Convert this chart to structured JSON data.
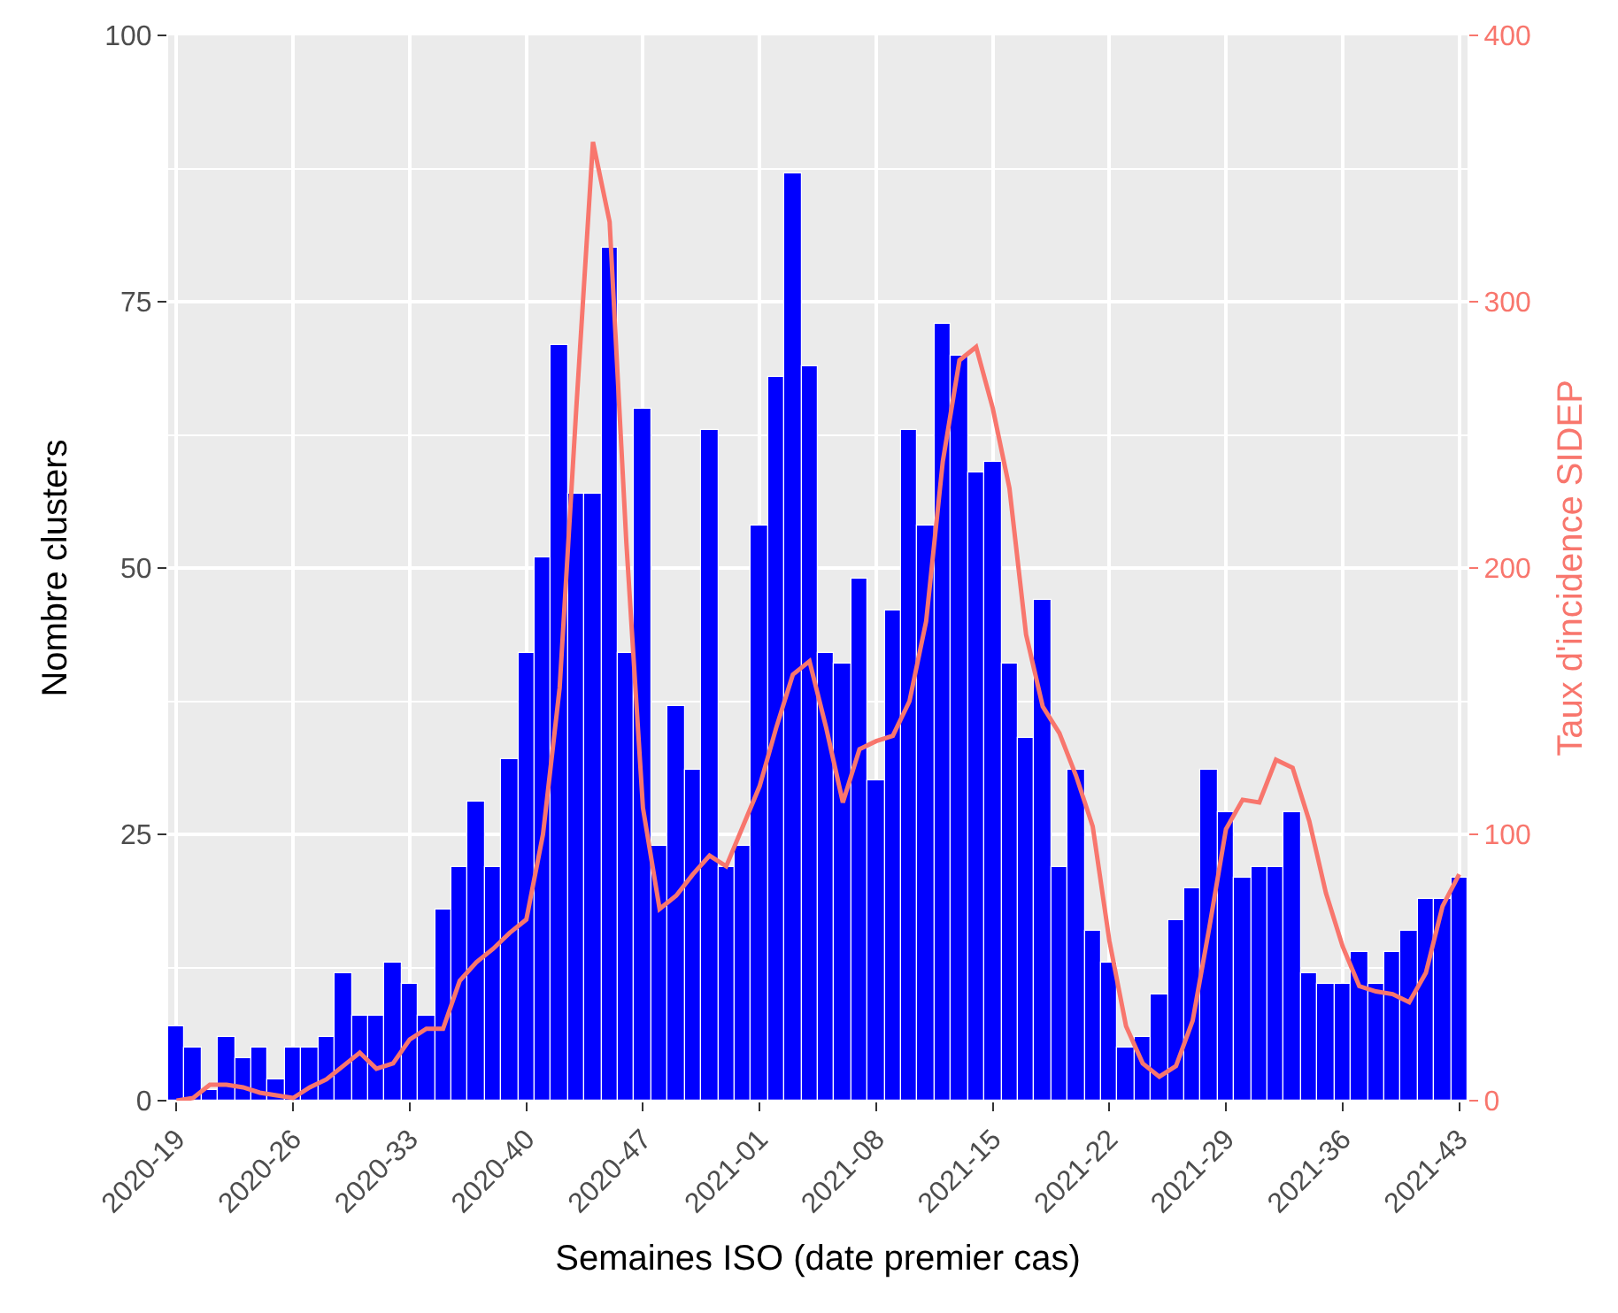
{
  "chart_data": {
    "type": "bar",
    "xlabel": "Semaines ISO (date premier cas)",
    "ylabel": "Nombre clusters",
    "y2label": "Taux d'incidence SIDEP",
    "categories": [
      "2020-19",
      null,
      null,
      null,
      null,
      null,
      null,
      "2020-26",
      null,
      null,
      null,
      null,
      null,
      null,
      "2020-33",
      null,
      null,
      null,
      null,
      null,
      null,
      "2020-40",
      null,
      null,
      null,
      null,
      null,
      null,
      "2020-47",
      null,
      null,
      null,
      null,
      null,
      null,
      "2021-01",
      null,
      null,
      null,
      null,
      null,
      null,
      "2021-08",
      null,
      null,
      null,
      null,
      null,
      null,
      "2021-15",
      null,
      null,
      null,
      null,
      null,
      null,
      "2021-22",
      null,
      null,
      null,
      null,
      null,
      null,
      "2021-29",
      null,
      null,
      null,
      null,
      null,
      null,
      "2021-36",
      null,
      null,
      null,
      null,
      null,
      null,
      "2021-43"
    ],
    "series": [
      {
        "color": "#0000ff",
        "values": [
          7,
          5,
          1,
          6,
          4,
          5,
          2,
          5,
          5,
          6,
          12,
          8,
          8,
          13,
          11,
          8,
          18,
          22,
          28,
          22,
          32,
          42,
          51,
          71,
          57,
          57,
          80,
          42,
          65,
          24,
          37,
          31,
          63,
          22,
          24,
          54,
          68,
          87,
          69,
          42,
          41,
          49,
          30,
          46,
          63,
          54,
          73,
          70,
          59,
          60,
          41,
          34,
          47,
          22,
          31,
          16,
          13,
          5,
          6,
          10,
          17,
          20,
          31,
          27,
          21,
          22,
          22,
          27,
          12,
          11,
          11,
          14,
          11,
          14,
          16,
          19,
          19,
          21
        ]
      },
      {
        "type": "line",
        "axis": "y2",
        "color": "#f8766d",
        "values": [
          0,
          1,
          6,
          6,
          5,
          3,
          2,
          1,
          5,
          8,
          13,
          18,
          12,
          14,
          23,
          27,
          27,
          45,
          52,
          57,
          63,
          68,
          100,
          155,
          260,
          360,
          330,
          210,
          110,
          72,
          77,
          85,
          92,
          88,
          103,
          118,
          140,
          160,
          165,
          140,
          112,
          132,
          135,
          137,
          150,
          180,
          240,
          278,
          283,
          260,
          230,
          175,
          148,
          138,
          122,
          103,
          60,
          28,
          14,
          9,
          13,
          30,
          65,
          102,
          113,
          112,
          128,
          125,
          105,
          78,
          58,
          43,
          41,
          40,
          37,
          48,
          73,
          85
        ]
      }
    ],
    "ylim": [
      0,
      100
    ],
    "yticks": [
      0,
      25,
      50,
      75,
      100
    ],
    "y2lim": [
      0,
      400
    ],
    "y2ticks": [
      0,
      100,
      200,
      300,
      400
    ],
    "grid": true
  }
}
